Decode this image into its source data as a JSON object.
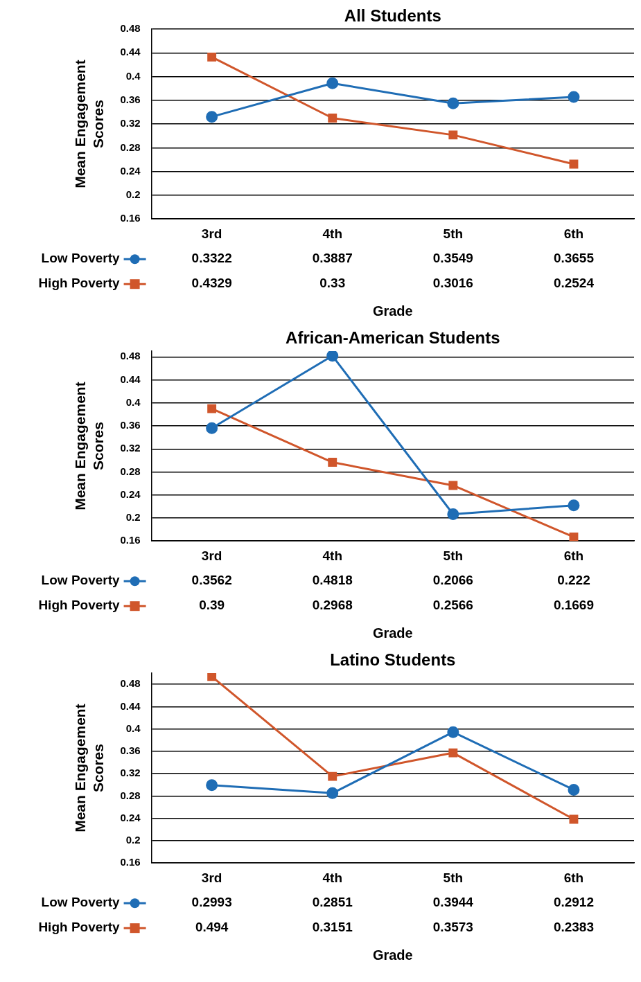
{
  "chart_data": [
    {
      "type": "line",
      "title": "All Students",
      "xlabel": "Grade",
      "ylabel": "Mean Engagement Scores",
      "categories": [
        "3rd",
        "4th",
        "5th",
        "6th"
      ],
      "ylim": [
        0.16,
        0.48
      ],
      "yticks": [
        0.16,
        0.2,
        0.24,
        0.28,
        0.32,
        0.36,
        0.4,
        0.44,
        0.48
      ],
      "grid": "y",
      "legend": "bottom left",
      "data_labels": true,
      "series": [
        {
          "name": "Low Poverty",
          "color": "#1f6db5",
          "marker": "circle",
          "values": [
            0.3322,
            0.3887,
            0.3549,
            0.3655
          ]
        },
        {
          "name": "High Poverty",
          "color": "#d0562b",
          "marker": "square",
          "values": [
            0.4329,
            0.33,
            0.3016,
            0.2524
          ]
        }
      ]
    },
    {
      "type": "line",
      "title": "African-American Students",
      "xlabel": "Grade",
      "ylabel": "Mean Engagement Scores",
      "categories": [
        "3rd",
        "4th",
        "5th",
        "6th"
      ],
      "ylim": [
        0.16,
        0.49
      ],
      "yticks": [
        0.16,
        0.2,
        0.24,
        0.28,
        0.32,
        0.36,
        0.4,
        0.44,
        0.48
      ],
      "grid": "y",
      "legend": "bottom left",
      "data_labels": true,
      "series": [
        {
          "name": "Low Poverty",
          "color": "#1f6db5",
          "marker": "circle",
          "values": [
            0.3562,
            0.4818,
            0.2066,
            0.222
          ]
        },
        {
          "name": "High Poverty",
          "color": "#d0562b",
          "marker": "square",
          "values": [
            0.39,
            0.2968,
            0.2566,
            0.1669
          ]
        }
      ]
    },
    {
      "type": "line",
      "title": "Latino Students",
      "xlabel": "Grade",
      "ylabel": "Mean Engagement Scores",
      "categories": [
        "3rd",
        "4th",
        "5th",
        "6th"
      ],
      "ylim": [
        0.16,
        0.5
      ],
      "yticks": [
        0.16,
        0.2,
        0.24,
        0.28,
        0.32,
        0.36,
        0.4,
        0.44,
        0.48
      ],
      "grid": "y",
      "legend": "bottom left",
      "data_labels": true,
      "series": [
        {
          "name": "Low Poverty",
          "color": "#1f6db5",
          "marker": "circle",
          "values": [
            0.2993,
            0.2851,
            0.3944,
            0.2912
          ]
        },
        {
          "name": "High Poverty",
          "color": "#d0562b",
          "marker": "square",
          "values": [
            0.494,
            0.3151,
            0.3573,
            0.2383
          ]
        }
      ]
    }
  ]
}
